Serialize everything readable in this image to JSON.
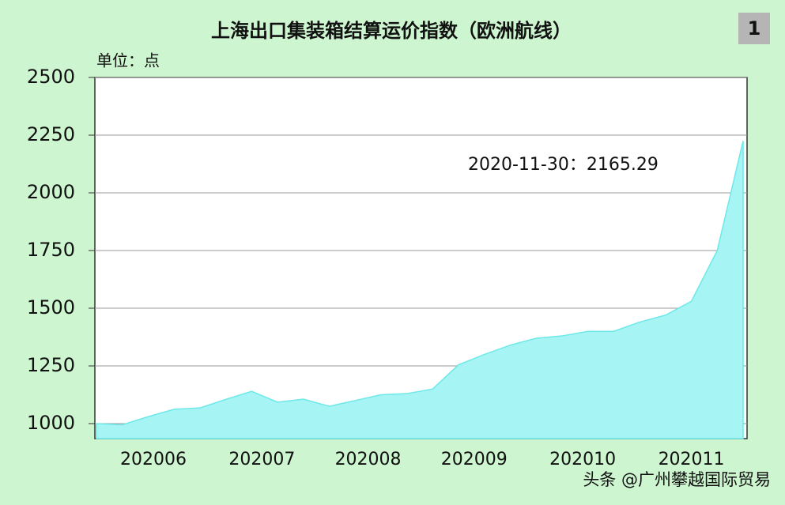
{
  "chart_data": {
    "type": "area",
    "title": "上海出口集装箱结算运价指数（欧洲航线）",
    "badge": "1",
    "y_label": "单位：点",
    "annotation": "2020-11-30：2165.29",
    "watermark": "头条 @广州攀越国际贸易",
    "values": [
      1000,
      995,
      1030,
      1062,
      1068,
      1105,
      1140,
      1093,
      1106,
      1075,
      1100,
      1125,
      1130,
      1150,
      1255,
      1300,
      1340,
      1370,
      1380,
      1400,
      1400,
      1440,
      1470,
      1530,
      1750,
      2225
    ],
    "color": "#a6f4f4",
    "xlim": [
      0,
      25
    ],
    "xticks": [
      {
        "value": 2.2,
        "label": "202006"
      },
      {
        "value": 6.4,
        "label": "202007"
      },
      {
        "value": 10.5,
        "label": "202008"
      },
      {
        "value": 14.6,
        "label": "202009"
      },
      {
        "value": 18.8,
        "label": "202010"
      },
      {
        "value": 23,
        "label": "202011"
      }
    ],
    "ylim": [
      935,
      2500
    ],
    "yticks": [
      1000,
      1250,
      1500,
      1750,
      2000,
      2250,
      2500
    ],
    "grid": true
  }
}
